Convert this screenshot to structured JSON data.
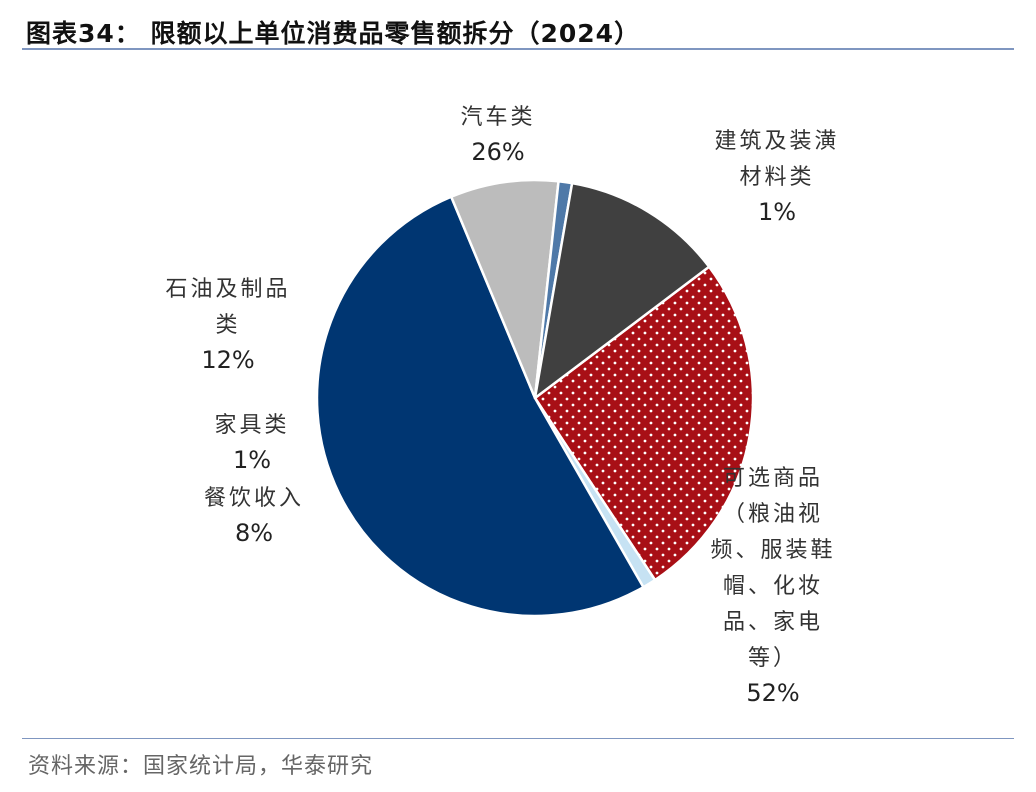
{
  "title": "图表34：  限额以上单位消费品零售额拆分（2024）",
  "source": "资料来源：国家统计局，华泰研究",
  "chart_data": {
    "type": "pie",
    "title": "限额以上单位消费品零售额拆分（2024）",
    "slices": [
      {
        "name": "汽车类",
        "label_lines": [
          "汽车类"
        ],
        "value": 26,
        "value_label": "26%",
        "color": "#a80f16",
        "pattern": "dots"
      },
      {
        "name": "建筑及装潢材料类",
        "label_lines": [
          "建筑及装潢",
          "材料类"
        ],
        "value": 1,
        "value_label": "1%",
        "color": "#c6e2f3"
      },
      {
        "name": "可选商品（粮油视频、服装鞋帽、化妆品、家电等）",
        "label_lines": [
          "可选商品",
          "（粮油视",
          "频、服装鞋",
          "帽、化妆",
          "品、家电",
          "等）"
        ],
        "value": 52,
        "value_label": "52%",
        "color": "#003672"
      },
      {
        "name": "餐饮收入",
        "label_lines": [
          "餐饮收入"
        ],
        "value": 8,
        "value_label": "8%",
        "color": "#bcbcbc"
      },
      {
        "name": "家具类",
        "label_lines": [
          "家具类"
        ],
        "value": 1,
        "value_label": "1%",
        "color": "#4f79a8"
      },
      {
        "name": "石油及制品类",
        "label_lines": [
          "石油及制品",
          "类"
        ],
        "value": 12,
        "value_label": "12%",
        "color": "#404040"
      }
    ]
  }
}
